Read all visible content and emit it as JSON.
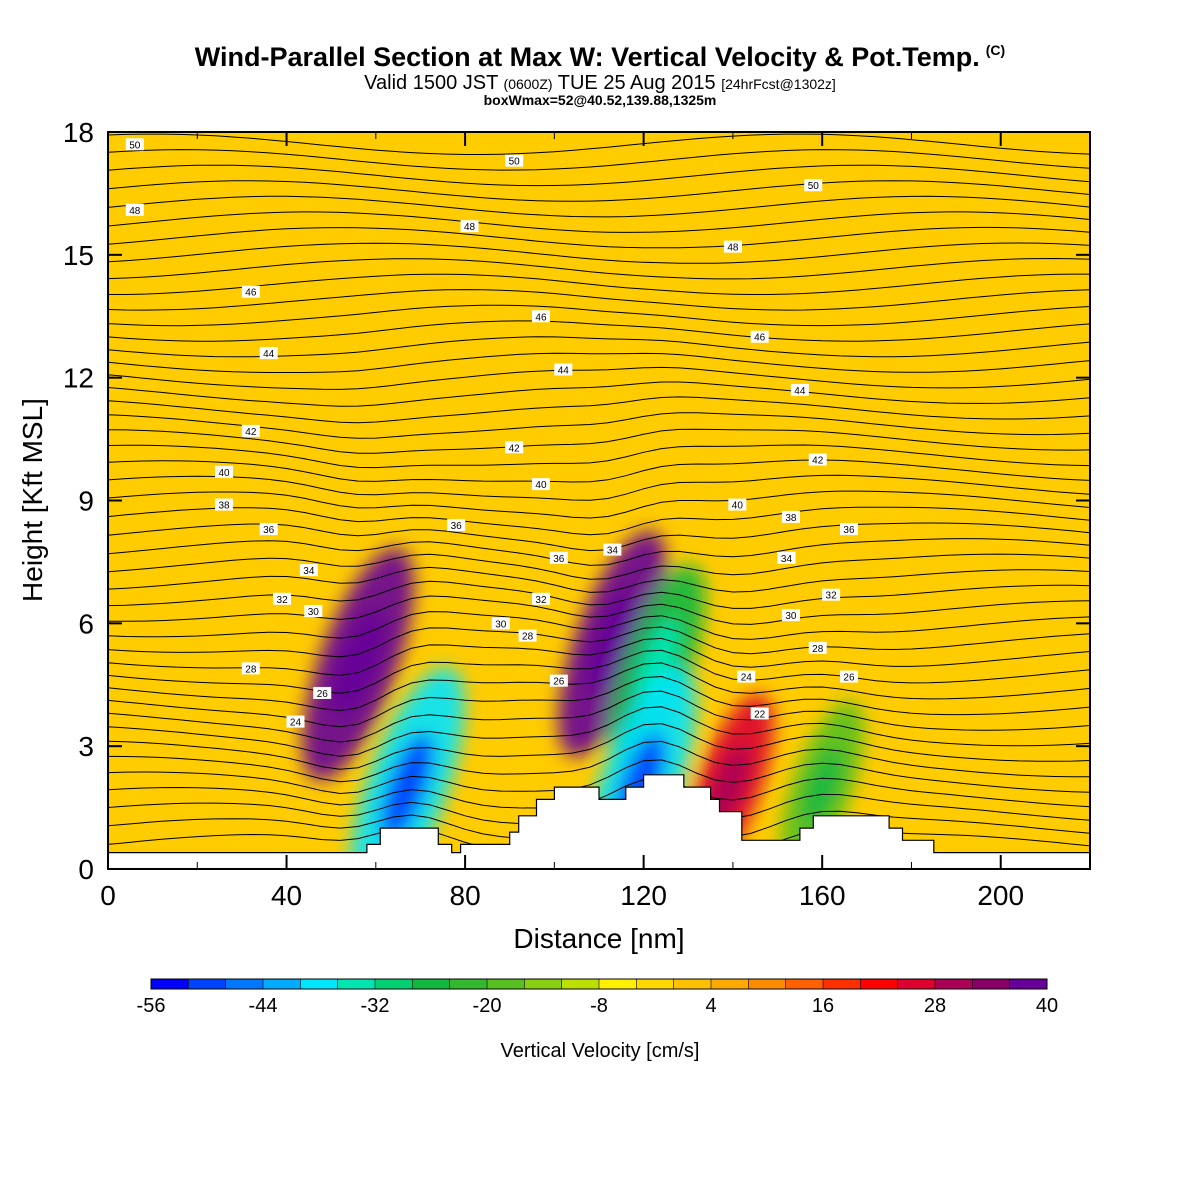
{
  "header": {
    "title": "Wind-Parallel Section at Max W: Vertical Velocity & Pot.Temp.",
    "title_mark": "(C)",
    "valid_prefix": "Valid 1500 JST",
    "valid_utc": "(0600Z)",
    "valid_date": "TUE 25 Aug 2015",
    "forecast_tag": "[24hrFcst@1302z]",
    "box_note": "boxWmax=52@40.52,139.88,1325m"
  },
  "chart_data": {
    "type": "heatmap",
    "title": "Wind-Parallel Section at Max W: Vertical Velocity & Pot.Temp.",
    "xlabel": "Distance [nm]",
    "ylabel": "Height [Kft MSL]",
    "xlim": [
      0,
      220
    ],
    "ylim": [
      0,
      18
    ],
    "x_ticks": [
      "0",
      "40",
      "80",
      "120",
      "160",
      "200"
    ],
    "y_ticks": [
      "0",
      "3",
      "6",
      "9",
      "12",
      "15",
      "18"
    ],
    "colorbar": {
      "label": "Vertical Velocity [cm/s]",
      "tick_labels": [
        "-56",
        "-44",
        "-32",
        "-20",
        "-8",
        "4",
        "16",
        "28",
        "40"
      ],
      "min": -56,
      "max": 40,
      "step": 4,
      "colors": [
        "#0000ff",
        "#0044ff",
        "#0077ff",
        "#00aaff",
        "#00e6ff",
        "#00e6b0",
        "#00d070",
        "#10b840",
        "#33b830",
        "#55c020",
        "#88d010",
        "#bbe000",
        "#fff000",
        "#ffd800",
        "#ffc000",
        "#ffaa00",
        "#ff8c00",
        "#ff6000",
        "#ff3000",
        "#ff0000",
        "#dd0030",
        "#aa0055",
        "#880066",
        "#660099"
      ]
    },
    "features": [
      {
        "type": "updraft",
        "x": 56,
        "y": 5,
        "w": 38
      },
      {
        "type": "downdraft",
        "x": 67,
        "y": 2,
        "w": -40
      },
      {
        "type": "updraft",
        "x": 113,
        "y": 5.5,
        "w": 36
      },
      {
        "type": "downdraft",
        "x": 123,
        "y": 5,
        "w": -28
      },
      {
        "type": "downdraft",
        "x": 119,
        "y": 2,
        "w": -40
      },
      {
        "type": "updraft",
        "x": 139,
        "y": 2,
        "w": 24
      },
      {
        "type": "downdraft",
        "x": 160,
        "y": 2,
        "w": -20
      }
    ],
    "terrain": [
      [
        58,
        0.4
      ],
      [
        58,
        0.6
      ],
      [
        61,
        0.6
      ],
      [
        61,
        1.0
      ],
      [
        74,
        1.0
      ],
      [
        74,
        0.6
      ],
      [
        77,
        0.6
      ],
      [
        77,
        0.4
      ],
      [
        79,
        0.4
      ],
      [
        79,
        0.6
      ],
      [
        90,
        0.6
      ],
      [
        90,
        0.9
      ],
      [
        92,
        0.9
      ],
      [
        92,
        1.3
      ],
      [
        96,
        1.3
      ],
      [
        96,
        1.7
      ],
      [
        100,
        1.7
      ],
      [
        100,
        2.0
      ],
      [
        110,
        2.0
      ],
      [
        110,
        1.7
      ],
      [
        116,
        1.7
      ],
      [
        116,
        2.0
      ],
      [
        120,
        2.0
      ],
      [
        120,
        2.3
      ],
      [
        129,
        2.3
      ],
      [
        129,
        2.0
      ],
      [
        135,
        2.0
      ],
      [
        135,
        1.7
      ],
      [
        137,
        1.7
      ],
      [
        137,
        1.4
      ],
      [
        142,
        1.4
      ],
      [
        142,
        0.7
      ],
      [
        155,
        0.7
      ],
      [
        155,
        1.0
      ],
      [
        158,
        1.0
      ],
      [
        158,
        1.3
      ],
      [
        175,
        1.3
      ],
      [
        175,
        1.0
      ],
      [
        178,
        1.0
      ],
      [
        178,
        0.7
      ],
      [
        185,
        0.7
      ],
      [
        185,
        0.4
      ],
      [
        220,
        0.4
      ],
      [
        220,
        0
      ],
      [
        0,
        0
      ],
      [
        0,
        0.4
      ]
    ],
    "contour_labels": [
      {
        "text": "50",
        "x": 6,
        "y": 17.7
      },
      {
        "text": "50",
        "x": 91,
        "y": 17.3
      },
      {
        "text": "50",
        "x": 158,
        "y": 16.7
      },
      {
        "text": "48",
        "x": 6,
        "y": 16.1
      },
      {
        "text": "48",
        "x": 81,
        "y": 15.7
      },
      {
        "text": "48",
        "x": 140,
        "y": 15.2
      },
      {
        "text": "46",
        "x": 32,
        "y": 14.1
      },
      {
        "text": "46",
        "x": 97,
        "y": 13.5
      },
      {
        "text": "46",
        "x": 146,
        "y": 13.0
      },
      {
        "text": "44",
        "x": 36,
        "y": 12.6
      },
      {
        "text": "44",
        "x": 102,
        "y": 12.2
      },
      {
        "text": "44",
        "x": 155,
        "y": 11.7
      },
      {
        "text": "42",
        "x": 32,
        "y": 10.7
      },
      {
        "text": "42",
        "x": 91,
        "y": 10.3
      },
      {
        "text": "42",
        "x": 159,
        "y": 10.0
      },
      {
        "text": "40",
        "x": 26,
        "y": 9.7
      },
      {
        "text": "40",
        "x": 97,
        "y": 9.4
      },
      {
        "text": "40",
        "x": 141,
        "y": 8.9
      },
      {
        "text": "38",
        "x": 26,
        "y": 8.9
      },
      {
        "text": "38",
        "x": 153,
        "y": 8.6
      },
      {
        "text": "36",
        "x": 36,
        "y": 8.3
      },
      {
        "text": "36",
        "x": 78,
        "y": 8.4
      },
      {
        "text": "36",
        "x": 166,
        "y": 8.3
      },
      {
        "text": "36",
        "x": 101,
        "y": 7.6
      },
      {
        "text": "34",
        "x": 113,
        "y": 7.8
      },
      {
        "text": "34",
        "x": 45,
        "y": 7.3
      },
      {
        "text": "34",
        "x": 152,
        "y": 7.6
      },
      {
        "text": "32",
        "x": 39,
        "y": 6.6
      },
      {
        "text": "32",
        "x": 97,
        "y": 6.6
      },
      {
        "text": "32",
        "x": 162,
        "y": 6.7
      },
      {
        "text": "30",
        "x": 46,
        "y": 6.3
      },
      {
        "text": "30",
        "x": 88,
        "y": 6.0
      },
      {
        "text": "30",
        "x": 153,
        "y": 6.2
      },
      {
        "text": "28",
        "x": 32,
        "y": 4.9
      },
      {
        "text": "28",
        "x": 94,
        "y": 5.7
      },
      {
        "text": "28",
        "x": 159,
        "y": 5.4
      },
      {
        "text": "26",
        "x": 48,
        "y": 4.3
      },
      {
        "text": "26",
        "x": 101,
        "y": 4.6
      },
      {
        "text": "26",
        "x": 166,
        "y": 4.7
      },
      {
        "text": "24",
        "x": 42,
        "y": 3.6
      },
      {
        "text": "24",
        "x": 143,
        "y": 4.7
      },
      {
        "text": "22",
        "x": 146,
        "y": 3.8
      }
    ]
  }
}
